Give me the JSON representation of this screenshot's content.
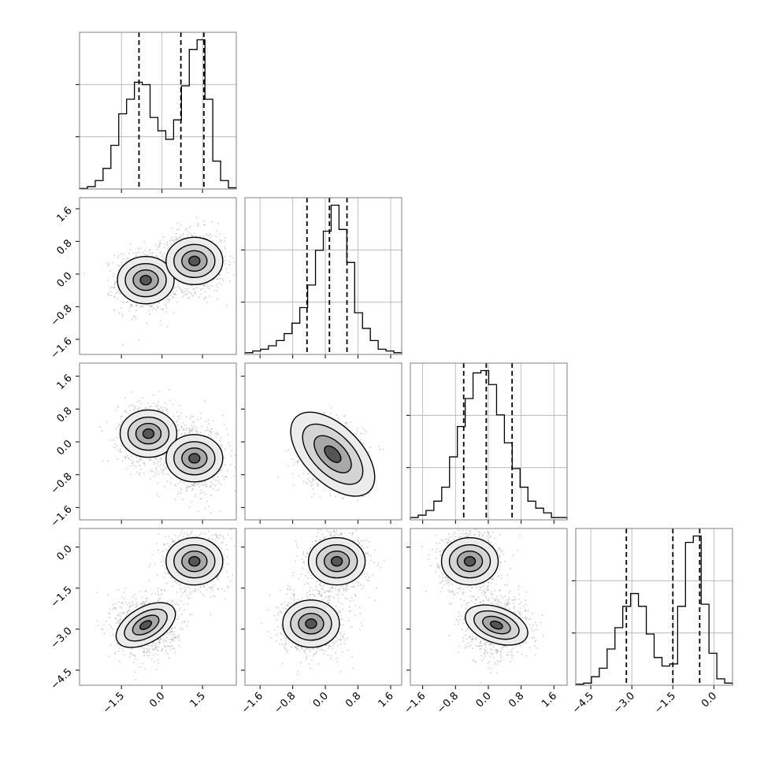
{
  "chart_data": {
    "type": "corner",
    "grid": true,
    "n_params": 4,
    "params": [
      {
        "ticks": [
          -1.5,
          0.0,
          1.5
        ],
        "tick_labels": [
          "−1.5",
          "0.0",
          "1.5"
        ],
        "range": [
          -3.05,
          2.75
        ]
      },
      {
        "ticks": [
          -1.6,
          -0.8,
          0.0,
          0.8,
          1.6
        ],
        "tick_labels": [
          "−1.6",
          "−0.8",
          "0.0",
          "0.8",
          "1.6"
        ],
        "range": [
          -1.97,
          1.87
        ]
      },
      {
        "ticks": [
          -1.6,
          -0.8,
          0.0,
          0.8,
          1.6
        ],
        "tick_labels": [
          "−1.6",
          "−0.8",
          "0.0",
          "0.8",
          "1.6"
        ],
        "range": [
          -1.9,
          1.92
        ]
      },
      {
        "ticks": [
          -4.5,
          -3.0,
          -1.5,
          0.0
        ],
        "tick_labels": [
          "−4.5",
          "−3.0",
          "−1.5",
          "0.0"
        ],
        "range": [
          -5.05,
          0.68
        ]
      }
    ],
    "histograms": [
      {
        "param": 0,
        "quantiles": [
          -0.85,
          0.7,
          1.55
        ],
        "bin_edges": [
          -3.05,
          -2.76,
          -2.47,
          -2.18,
          -1.89,
          -1.6,
          -1.31,
          -1.02,
          -0.73,
          -0.44,
          -0.15,
          0.14,
          0.43,
          0.72,
          1.01,
          1.3,
          1.59,
          1.88,
          2.17,
          2.46,
          2.75
        ],
        "counts": [
          0.5,
          2,
          7,
          17,
          36,
          62,
          74,
          88,
          86,
          59,
          48,
          41,
          57,
          85,
          115,
          123,
          74,
          23,
          7,
          1
        ]
      },
      {
        "param": 1,
        "quantiles": [
          -0.45,
          0.1,
          0.53
        ],
        "bin_edges": [
          -1.97,
          -1.778,
          -1.586,
          -1.394,
          -1.202,
          -1.01,
          -0.818,
          -0.626,
          -0.434,
          -0.242,
          -0.05,
          0.142,
          0.334,
          0.526,
          0.718,
          0.91,
          1.102,
          1.294,
          1.486,
          1.678,
          1.87
        ],
        "counts": [
          1,
          2,
          3,
          5,
          8,
          12,
          18,
          27,
          40,
          60,
          71,
          86,
          72,
          53,
          24,
          15,
          8,
          3,
          2,
          1
        ]
      },
      {
        "param": 2,
        "quantiles": [
          -0.6,
          -0.05,
          0.58
        ],
        "bin_edges": [
          -1.9,
          -1.709,
          -1.518,
          -1.327,
          -1.136,
          -0.945,
          -0.754,
          -0.563,
          -0.372,
          -0.181,
          0.01,
          0.201,
          0.392,
          0.583,
          0.774,
          0.965,
          1.156,
          1.347,
          1.538,
          1.729,
          1.92
        ],
        "counts": [
          1,
          2,
          4,
          8,
          14,
          27,
          40,
          52,
          63,
          64,
          58,
          45,
          33,
          22,
          14,
          8,
          5,
          3,
          1,
          1
        ]
      },
      {
        "param": 3,
        "quantiles": [
          -3.2,
          -1.5,
          -0.52
        ],
        "bin_edges": [
          -5.05,
          -4.763,
          -4.477,
          -4.19,
          -3.904,
          -3.617,
          -3.331,
          -3.044,
          -2.758,
          -2.471,
          -2.185,
          -1.898,
          -1.612,
          -1.325,
          -1.038,
          -0.752,
          -0.465,
          -0.179,
          0.108,
          0.394,
          0.68
        ],
        "counts": [
          0.5,
          1,
          4,
          8,
          17,
          27,
          37,
          43,
          37,
          24,
          13,
          9,
          10,
          37,
          67,
          70,
          38,
          15,
          3,
          1
        ]
      }
    ],
    "pairs": [
      {
        "x": 0,
        "y": 1,
        "modes": [
          [
            -0.6,
            -0.15
          ],
          [
            1.2,
            0.32
          ]
        ]
      },
      {
        "x": 0,
        "y": 2,
        "modes": [
          [
            -0.5,
            0.2
          ],
          [
            1.2,
            -0.4
          ]
        ]
      },
      {
        "x": 1,
        "y": 2,
        "modes": [
          [
            0.18,
            -0.3
          ]
        ]
      },
      {
        "x": 0,
        "y": 3,
        "modes": [
          [
            -0.6,
            -2.85
          ],
          [
            1.2,
            -0.52
          ]
        ]
      },
      {
        "x": 1,
        "y": 3,
        "modes": [
          [
            -0.35,
            -2.8
          ],
          [
            0.28,
            -0.52
          ]
        ]
      },
      {
        "x": 2,
        "y": 3,
        "modes": [
          [
            -0.45,
            -0.52
          ],
          [
            0.2,
            -2.85
          ]
        ]
      }
    ],
    "colors": {
      "line": "#000000",
      "points": "#9a9a9a",
      "grid": "#b0b0b0",
      "axes": "#7f7f7f"
    }
  }
}
